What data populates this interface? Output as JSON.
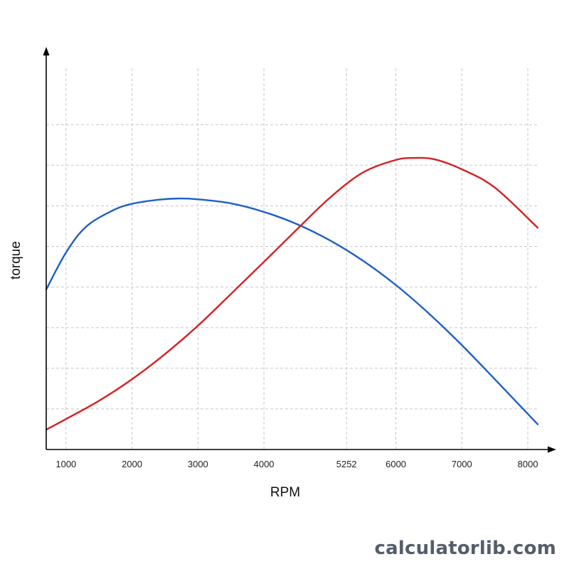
{
  "chart_data": {
    "type": "line",
    "title": "",
    "xlabel": "RPM",
    "ylabel": "torque",
    "xlim": [
      700,
      8150
    ],
    "ylim": [
      0,
      10
    ],
    "grid": true,
    "x_ticks": [
      1000,
      2000,
      3000,
      4000,
      5252,
      6000,
      7000,
      8000
    ],
    "x_tick_labels": [
      "1000",
      "2000",
      "3000",
      "4000",
      "5252",
      "6000",
      "7000",
      "8000"
    ],
    "y_gridlines": [
      1,
      2,
      3,
      4,
      5,
      6,
      7,
      8
    ],
    "series": [
      {
        "color": "#1f5fc4",
        "x": [
          700,
          1000,
          1300,
          1700,
          2000,
          2400,
          2700,
          3000,
          3500,
          4000,
          4500,
          5000,
          5500,
          6000,
          6500,
          7000,
          7500,
          8150
        ],
        "y": [
          3.94,
          4.85,
          5.48,
          5.88,
          6.05,
          6.15,
          6.18,
          6.16,
          6.06,
          5.85,
          5.55,
          5.15,
          4.65,
          4.05,
          3.35,
          2.57,
          1.73,
          0.62
        ]
      },
      {
        "color": "#d42020",
        "x": [
          700,
          1000,
          1500,
          2000,
          2500,
          3000,
          3500,
          4000,
          4500,
          5000,
          5500,
          6000,
          6300,
          6600,
          7000,
          7500,
          8150
        ],
        "y": [
          0.49,
          0.75,
          1.2,
          1.73,
          2.35,
          3.05,
          3.83,
          4.62,
          5.42,
          6.2,
          6.82,
          7.13,
          7.18,
          7.14,
          6.9,
          6.45,
          5.46
        ]
      }
    ]
  },
  "watermark": "calculatorlib.com"
}
